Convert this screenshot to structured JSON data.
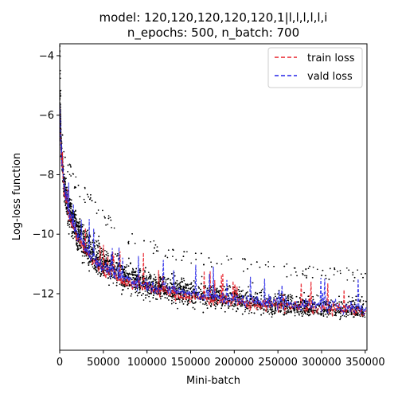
{
  "chart_data": {
    "type": "line",
    "title": "model: 120,120,120,120,120,1|l,l,l,l,l,i",
    "subtitle": "n_epochs: 500, n_batch: 700",
    "xlabel": "Mini-batch",
    "ylabel": "Log-loss function",
    "xlim": [
      0,
      352000
    ],
    "ylim": [
      -13.9,
      -3.6
    ],
    "x_ticks": [
      0,
      50000,
      100000,
      150000,
      200000,
      250000,
      300000,
      350000
    ],
    "x_tick_labels": [
      "0",
      "50000",
      "100000",
      "150000",
      "200000",
      "250000",
      "300000",
      "350000"
    ],
    "y_ticks": [
      -12,
      -10,
      -8,
      -6,
      -4
    ],
    "y_tick_labels": [
      "−12",
      "−10",
      "−8",
      "−6",
      "−4"
    ],
    "grid": false,
    "legend_position": "top-right",
    "series": [
      {
        "name": "",
        "style": "scatter",
        "color": "#000000",
        "description_points": {
          "x": [
            0,
            2000,
            5000,
            10000,
            20000,
            35000,
            50000,
            75000,
            100000,
            150000,
            200000,
            250000,
            300000,
            350000
          ],
          "center": [
            -5.5,
            -7.2,
            -8.3,
            -9.1,
            -9.9,
            -10.6,
            -11.0,
            -11.4,
            -11.7,
            -12.0,
            -12.2,
            -12.4,
            -12.5,
            -12.6
          ],
          "upper": [
            -3.9,
            -6.3,
            -7.3,
            -7.9,
            -8.5,
            -9.1,
            -9.6,
            -10.2,
            -10.5,
            -10.9,
            -11.1,
            -11.3,
            -11.4,
            -11.5
          ],
          "lower": [
            -7.3,
            -8.8,
            -9.8,
            -10.8,
            -11.5,
            -12.0,
            -12.3,
            -12.6,
            -12.8,
            -13.0,
            -13.1,
            -13.2,
            -13.2,
            -13.2
          ]
        }
      },
      {
        "name": "train loss",
        "style": "dashed",
        "color": "#e8202a",
        "x": [
          0,
          2000,
          5000,
          10000,
          20000,
          35000,
          50000,
          75000,
          100000,
          150000,
          200000,
          250000,
          300000,
          350000
        ],
        "y": [
          -5.8,
          -7.4,
          -8.5,
          -9.3,
          -10.1,
          -10.8,
          -11.2,
          -11.6,
          -11.8,
          -12.1,
          -12.3,
          -12.4,
          -12.5,
          -12.6
        ]
      },
      {
        "name": "vald loss",
        "style": "dashed",
        "color": "#2323e8",
        "x": [
          0,
          2000,
          5000,
          10000,
          20000,
          35000,
          50000,
          75000,
          100000,
          150000,
          200000,
          250000,
          300000,
          350000
        ],
        "y": [
          -5.7,
          -7.3,
          -8.4,
          -9.2,
          -10.0,
          -10.7,
          -11.1,
          -11.5,
          -11.7,
          -12.0,
          -12.2,
          -12.3,
          -12.4,
          -12.5
        ]
      }
    ]
  }
}
